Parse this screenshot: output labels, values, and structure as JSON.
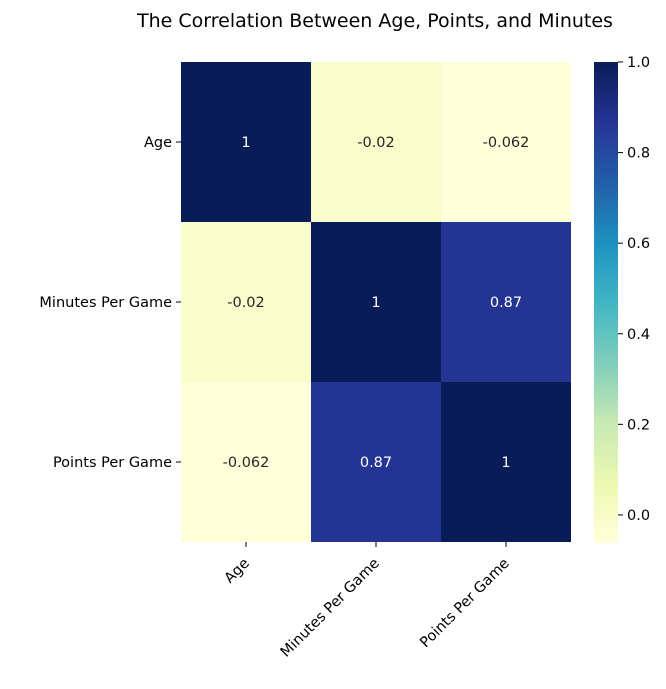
{
  "chart_data": {
    "type": "heatmap",
    "title": "The Correlation Between Age, Points, and Minutes",
    "rows": [
      "Age",
      "Minutes Per Game",
      "Points Per Game"
    ],
    "columns": [
      "Age",
      "Minutes Per Game",
      "Points Per Game"
    ],
    "values": [
      [
        1,
        -0.02,
        -0.062
      ],
      [
        -0.02,
        1,
        0.87
      ],
      [
        -0.062,
        0.87,
        1
      ]
    ],
    "annotations": [
      [
        "1",
        "-0.02",
        "-0.062"
      ],
      [
        "-0.02",
        "1",
        "0.87"
      ],
      [
        "-0.062",
        "0.87",
        "1"
      ]
    ],
    "colormap": "YlGnBu",
    "colorbar": {
      "range": [
        -0.062,
        1.0
      ],
      "ticks": [
        0.0,
        0.2,
        0.4,
        0.6,
        0.8,
        1.0
      ],
      "tick_labels": [
        "0.0",
        "0.2",
        "0.4",
        "0.6",
        "0.8",
        "1.0"
      ]
    }
  }
}
